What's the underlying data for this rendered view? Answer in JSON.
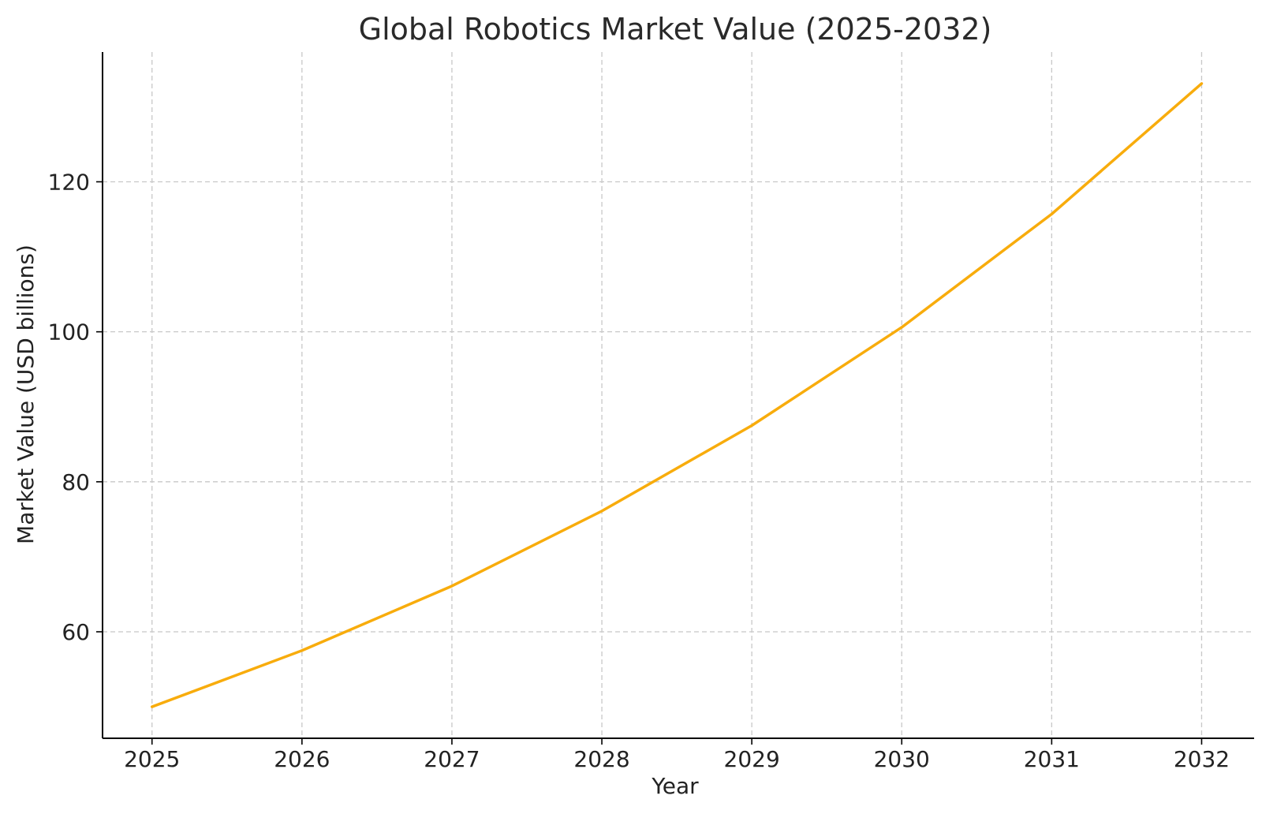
{
  "chart_data": {
    "type": "line",
    "title": "Global Robotics Market Value (2025-2032)",
    "xlabel": "Year",
    "ylabel": "Market Value (USD billions)",
    "x": [
      2025,
      2026,
      2027,
      2028,
      2029,
      2030,
      2031,
      2032
    ],
    "series": [
      {
        "values": [
          50.0,
          57.5,
          66.1,
          76.1,
          87.5,
          100.6,
          115.7,
          133.1
        ],
        "color": "#f8ac0c"
      }
    ],
    "xlim": [
      2024.67,
      2032.35
    ],
    "ylim": [
      45.8,
      137.3
    ],
    "yticks": [
      60,
      80,
      100,
      120
    ],
    "xticks": [
      2025,
      2026,
      2027,
      2028,
      2029,
      2030,
      2031,
      2032
    ],
    "grid": true,
    "legend": "none"
  }
}
